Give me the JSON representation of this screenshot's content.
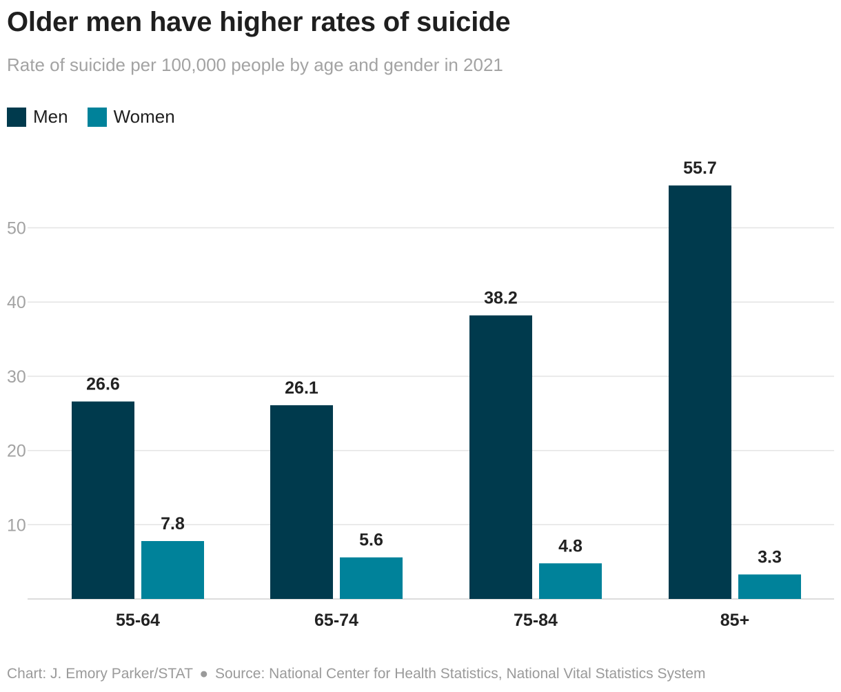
{
  "title": "Older men have higher rates of suicide",
  "subtitle": "Rate of suicide per 100,000 people by age and gender in 2021",
  "footer": {
    "credit": "Chart: J. Emory Parker/STAT",
    "separator": "●",
    "source": "Source: National Center for Health Statistics, National Vital Statistics System"
  },
  "colors": {
    "men": "#003a4d",
    "women": "#00829a",
    "grid": "#e3e3e3",
    "tick_text": "#a3a3a3",
    "label_text": "#222222"
  },
  "chart_data": {
    "type": "bar",
    "title": "Older men have higher rates of suicide",
    "subtitle": "Rate of suicide per 100,000 people by age and gender in 2021",
    "categories": [
      "55-64",
      "65-74",
      "75-84",
      "85+"
    ],
    "series": [
      {
        "name": "Men",
        "color": "#003a4d",
        "values": [
          26.6,
          26.1,
          38.2,
          55.7
        ],
        "labels": [
          "26.6",
          "26.1",
          "38.2",
          "55.7"
        ]
      },
      {
        "name": "Women",
        "color": "#00829a",
        "values": [
          7.8,
          5.6,
          4.8,
          3.3
        ],
        "labels": [
          "7.8",
          "5.6",
          "4.8",
          "3.3"
        ]
      }
    ],
    "yticks": [
      10,
      20,
      30,
      40,
      50
    ],
    "ylim": [
      0,
      60
    ],
    "grid": true,
    "legend": "top-left",
    "xlabel": "",
    "ylabel": ""
  }
}
